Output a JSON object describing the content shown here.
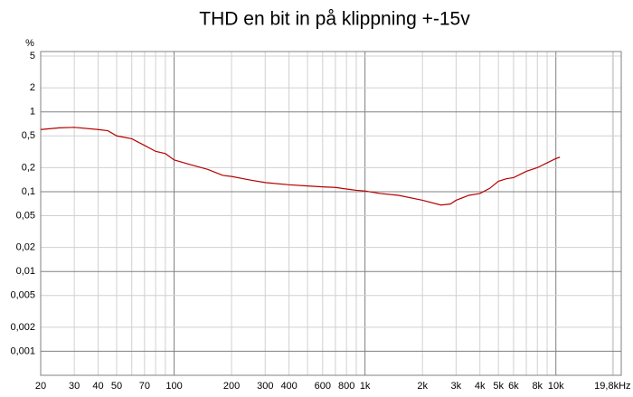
{
  "chart_data": {
    "type": "line",
    "title": "THD en bit in på klippning +-15v",
    "y_label": "%",
    "xscale": "log",
    "yscale": "log",
    "grid": true,
    "xlim": [
      20,
      22000
    ],
    "ylim": [
      0.0005,
      5.7
    ],
    "xticks": [
      20,
      30,
      40,
      50,
      70,
      {
        "value": 100,
        "label": "100"
      },
      200,
      300,
      400,
      600,
      800,
      {
        "value": 1000,
        "label": "1k"
      },
      {
        "value": 2000,
        "label": "2k"
      },
      {
        "value": 3000,
        "label": "3k"
      },
      {
        "value": 4000,
        "label": "4k"
      },
      {
        "value": 5000,
        "label": "5k"
      },
      {
        "value": 6000,
        "label": "6k"
      },
      {
        "value": 8000,
        "label": "8k"
      },
      {
        "value": 10000,
        "label": "10k"
      },
      {
        "value": 19800,
        "label": "19,8kHz"
      }
    ],
    "yticks": [
      5,
      2,
      1,
      {
        "value": 0.5,
        "label": "0,5"
      },
      {
        "value": 0.2,
        "label": "0,2"
      },
      {
        "value": 0.1,
        "label": "0,1"
      },
      {
        "value": 0.05,
        "label": "0,05"
      },
      {
        "value": 0.02,
        "label": "0,02"
      },
      {
        "value": 0.01,
        "label": "0,01"
      },
      {
        "value": 0.005,
        "label": "0,005"
      },
      {
        "value": 0.002,
        "label": "0,002"
      },
      {
        "value": 0.001,
        "label": "0,001"
      }
    ],
    "x": [
      20,
      25,
      30,
      40,
      45,
      50,
      60,
      70,
      80,
      90,
      100,
      120,
      150,
      180,
      200,
      250,
      300,
      400,
      500,
      600,
      700,
      800,
      900,
      1000,
      1200,
      1500,
      2000,
      2500,
      2800,
      3000,
      3500,
      4000,
      4500,
      5000,
      5500,
      6000,
      7000,
      8000,
      9000,
      10000,
      10500
    ],
    "series": [
      {
        "name": "THD",
        "color": "#b40000",
        "values": [
          0.6,
          0.63,
          0.64,
          0.6,
          0.58,
          0.5,
          0.46,
          0.38,
          0.32,
          0.3,
          0.25,
          0.22,
          0.19,
          0.16,
          0.155,
          0.14,
          0.13,
          0.122,
          0.118,
          0.115,
          0.113,
          0.108,
          0.104,
          0.102,
          0.095,
          0.09,
          0.078,
          0.068,
          0.07,
          0.078,
          0.09,
          0.095,
          0.11,
          0.135,
          0.145,
          0.15,
          0.18,
          0.2,
          0.23,
          0.26,
          0.27
        ]
      }
    ]
  }
}
